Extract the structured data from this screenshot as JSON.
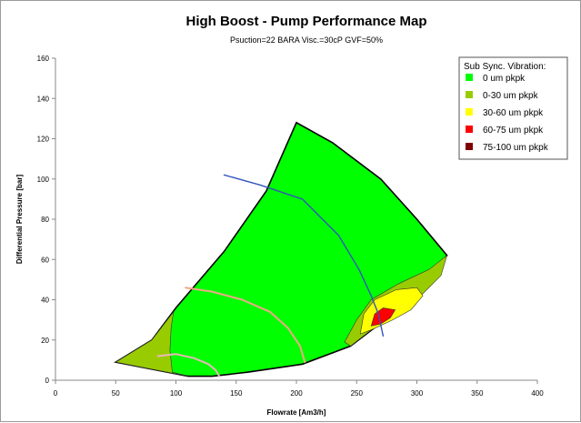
{
  "chart_data": {
    "type": "area",
    "title": "High Boost - Pump Performance Map",
    "subtitle": "Psuction=22 BARA   Visc.=30cP   GVF=50%",
    "xlabel": "Flowrate [Am3/h]",
    "ylabel": "Differential Pressure [bar]",
    "xlim": [
      0,
      400
    ],
    "ylim": [
      0,
      160
    ],
    "xticks": [
      0,
      50,
      100,
      150,
      200,
      250,
      300,
      350,
      400
    ],
    "yticks": [
      0,
      20,
      40,
      60,
      80,
      100,
      120,
      140,
      160
    ],
    "grid": false,
    "legend": {
      "title": "Sub Sync. Vibration:",
      "placement": "top-right",
      "entries": [
        {
          "label": "0   um pkpk",
          "color": "#00ff00"
        },
        {
          "label": "0-30  um pkpk",
          "color": "#99cc00"
        },
        {
          "label": "30-60 um pkpk",
          "color": "#ffff00"
        },
        {
          "label": "60-75  um pkpk",
          "color": "#ff0000"
        },
        {
          "label": "75-100 um pkpk",
          "color": "#800000"
        }
      ]
    },
    "regions": [
      {
        "name": "0 um pkpk",
        "color": "#00ff00",
        "outline": true,
        "points": [
          [
            50,
            9
          ],
          [
            80,
            20
          ],
          [
            100,
            36
          ],
          [
            140,
            64
          ],
          [
            175,
            94
          ],
          [
            200,
            128
          ],
          [
            230,
            118
          ],
          [
            270,
            100
          ],
          [
            300,
            80
          ],
          [
            325,
            62
          ],
          [
            305,
            48
          ],
          [
            280,
            33
          ],
          [
            245,
            17
          ],
          [
            205,
            8
          ],
          [
            160,
            4
          ],
          [
            130,
            2
          ],
          [
            110,
            2
          ],
          [
            50,
            9
          ]
        ]
      },
      {
        "name": "0-30 um pkpk (low flow)",
        "color": "#99cc00",
        "outline": false,
        "points": [
          [
            50,
            9
          ],
          [
            80,
            20
          ],
          [
            98,
            34
          ],
          [
            96,
            26
          ],
          [
            95,
            15
          ],
          [
            97,
            4
          ],
          [
            110,
            2
          ],
          [
            50,
            9
          ]
        ]
      },
      {
        "name": "0-30 um pkpk (high flow)",
        "color": "#99cc00",
        "outline": false,
        "points": [
          [
            240,
            19
          ],
          [
            250,
            30
          ],
          [
            262,
            40
          ],
          [
            285,
            48
          ],
          [
            310,
            55
          ],
          [
            325,
            62
          ],
          [
            320,
            52
          ],
          [
            300,
            40
          ],
          [
            280,
            33
          ],
          [
            260,
            24
          ],
          [
            245,
            17
          ],
          [
            240,
            19
          ]
        ]
      },
      {
        "name": "30-60 um pkpk",
        "color": "#ffff00",
        "outline": false,
        "points": [
          [
            253,
            23
          ],
          [
            256,
            33
          ],
          [
            265,
            40
          ],
          [
            283,
            45
          ],
          [
            300,
            46
          ],
          [
            305,
            42
          ],
          [
            295,
            35
          ],
          [
            280,
            30
          ],
          [
            262,
            25
          ],
          [
            253,
            23
          ]
        ]
      },
      {
        "name": "60-75 um pkpk",
        "color": "#ff0000",
        "outline": false,
        "points": [
          [
            262,
            27
          ],
          [
            265,
            33
          ],
          [
            272,
            36
          ],
          [
            282,
            35
          ],
          [
            278,
            31
          ],
          [
            270,
            28
          ],
          [
            262,
            27
          ]
        ]
      }
    ],
    "lines": [
      {
        "name": "",
        "color": "#3355bb",
        "points": [
          [
            140,
            102
          ],
          [
            170,
            97
          ],
          [
            205,
            90
          ],
          [
            235,
            72
          ],
          [
            252,
            55
          ],
          [
            262,
            42
          ],
          [
            268,
            33
          ],
          [
            272,
            22
          ]
        ]
      },
      {
        "name": "",
        "color": "#f0a888",
        "points": [
          [
            108,
            46
          ],
          [
            130,
            44
          ],
          [
            155,
            40
          ],
          [
            178,
            34
          ],
          [
            193,
            26
          ],
          [
            203,
            17
          ],
          [
            207,
            9
          ]
        ]
      },
      {
        "name": "",
        "color": "#e8b8b8",
        "points": [
          [
            85,
            12
          ],
          [
            100,
            13
          ],
          [
            115,
            11
          ],
          [
            127,
            8
          ],
          [
            133,
            5
          ],
          [
            136,
            2
          ]
        ]
      }
    ]
  }
}
